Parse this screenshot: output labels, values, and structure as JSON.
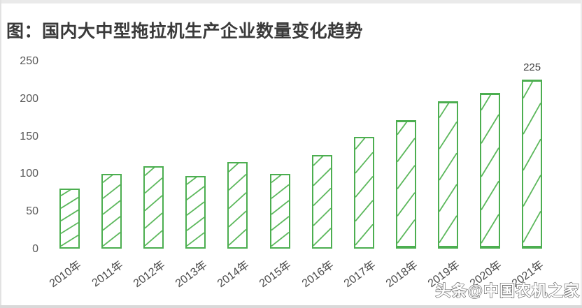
{
  "page": {
    "title": "图：国内大中型拖拉机生产企业数量变化趋势",
    "watermark": "头条@中国农机之家"
  },
  "colors": {
    "bar_border": "#4cae50",
    "bar_hatch": "#5cb85c",
    "title_text": "#3a3a3a",
    "axis_text": "#595959",
    "xlabel_text": "#4c4c4c",
    "value_label_text": "#404040",
    "watermark_fill": "#ffffff",
    "watermark_outline": "#6a6a6a"
  },
  "chart_data": {
    "type": "bar",
    "title": "图：国内大中型拖拉机生产企业数量变化趋势",
    "categories": [
      "2010年",
      "2011年",
      "2012年",
      "2013年",
      "2014年",
      "2015年",
      "2016年",
      "2017年",
      "2018年",
      "2019年",
      "2020年",
      "2021年"
    ],
    "values": [
      80,
      100,
      110,
      97,
      115,
      100,
      125,
      149,
      171,
      196,
      208,
      225
    ],
    "xlabel": "",
    "ylabel": "",
    "ylim": [
      0,
      250
    ],
    "yticks": [
      0,
      50,
      100,
      150,
      200,
      250
    ],
    "grid": false,
    "legend": false,
    "bar_fill_style": "white bars with green outline and green diagonal hatch lines",
    "annotations": [
      {
        "text": "225",
        "bar_index": 11
      }
    ]
  }
}
